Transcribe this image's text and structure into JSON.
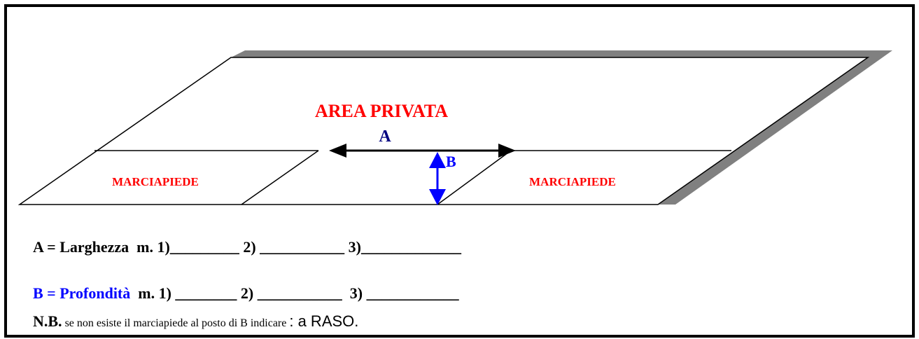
{
  "diagram": {
    "area_label": "AREA PRIVATA",
    "arrow_a_label": "A",
    "arrow_b_label": "B",
    "sidewalk_left": "MARCIAPIEDE",
    "sidewalk_right": "MARCIAPIEDE"
  },
  "form": {
    "line_a": "A = Larghezza  m. 1)_________ 2) ___________ 3)_____________",
    "line_b_label": "B = Profondità",
    "line_b_fields": "m. 1) ________ 2) ___________  3) ____________",
    "note_prefix": "N.B.",
    "note_text": "se non esiste il marciapiede al posto di B indicare",
    "note_suffix": ": a RASO."
  }
}
